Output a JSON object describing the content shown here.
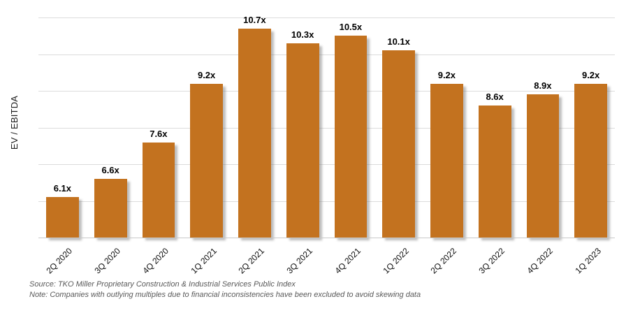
{
  "chart_data": {
    "type": "bar",
    "title": "",
    "xlabel": "",
    "ylabel": "EV / EBITDA",
    "categories": [
      "2Q 2020",
      "3Q 2020",
      "4Q 2020",
      "1Q 2021",
      "2Q 2021",
      "3Q 2021",
      "4Q 2021",
      "1Q 2022",
      "2Q 2022",
      "3Q 2022",
      "4Q 2022",
      "1Q 2023"
    ],
    "values": [
      6.1,
      6.6,
      7.6,
      9.2,
      10.7,
      10.3,
      10.5,
      10.1,
      9.2,
      8.6,
      8.9,
      9.2
    ],
    "data_labels": [
      "6.1x",
      "6.6x",
      "7.6x",
      "9.2x",
      "10.7x",
      "10.3x",
      "10.5x",
      "10.1x",
      "9.2x",
      "8.6x",
      "8.9x",
      "9.2x"
    ],
    "ylim": [
      5,
      11
    ],
    "gridline_step": 1,
    "grid": true,
    "legend": false,
    "bar_color": "#C3721F",
    "gridline_color": "#DCDCDC",
    "axis_line_color": "#C9C9C9"
  },
  "footer": {
    "source_line": "Source: TKO Miller Proprietary Construction & Industrial Services Public Index",
    "note_line": "Note: Companies with outlying multiples due to financial inconsistencies have been excluded to avoid skewing data"
  }
}
